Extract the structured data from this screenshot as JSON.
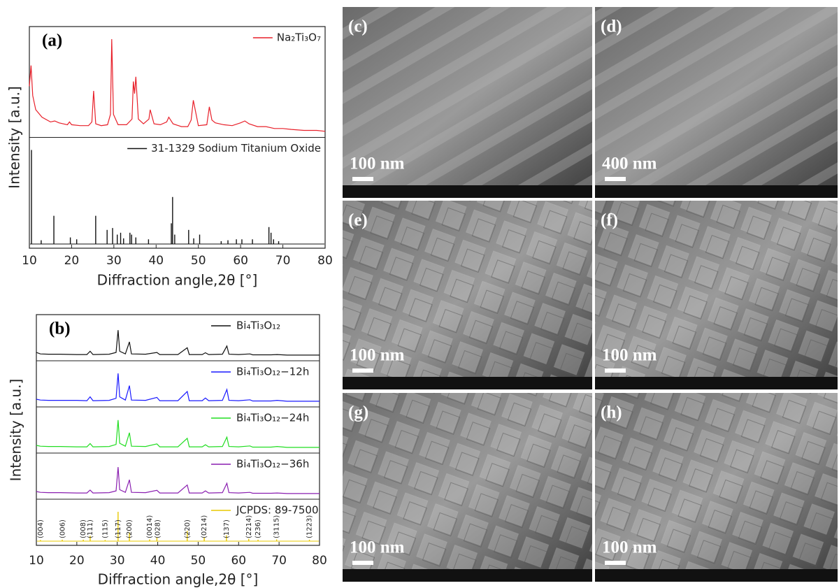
{
  "chart_data": [
    {
      "type": "line",
      "panel_label": "(a)",
      "xlabel": "Diffraction angle,2θ [°]",
      "ylabel": "Intensity [a.u.]",
      "xlim": [
        10,
        80
      ],
      "xticks": [
        10,
        20,
        30,
        40,
        50,
        60,
        70,
        80
      ],
      "ylim": [
        0,
        100
      ],
      "legend": "upper right",
      "series": [
        {
          "name": "Na₂Ti₃O₇",
          "color": "#e8202a",
          "x": [
            10,
            10.4,
            10.8,
            11.5,
            13,
            15,
            16,
            17,
            19,
            19.5,
            20,
            22,
            24,
            24.8,
            25.2,
            25.7,
            27,
            28.5,
            29.2,
            29.5,
            29.9,
            31,
            33,
            34.3,
            34.6,
            34.9,
            35.2,
            35.8,
            37,
            38.3,
            38.6,
            39.5,
            41,
            42.5,
            43,
            44,
            46,
            47.5,
            48.3,
            48.8,
            50,
            52,
            52.6,
            53.2,
            54,
            56,
            58,
            60,
            61,
            62,
            64,
            66,
            68,
            70,
            72,
            75,
            78,
            80
          ],
          "values": [
            50,
            72,
            40,
            25,
            17,
            12,
            13,
            11,
            9,
            12,
            9,
            8,
            8,
            12,
            45,
            10,
            8,
            9,
            20,
            100,
            20,
            9,
            9,
            15,
            55,
            42,
            60,
            15,
            10,
            15,
            25,
            10,
            9,
            12,
            17,
            10,
            7,
            7,
            14,
            35,
            8,
            9,
            28,
            14,
            11,
            9,
            8,
            11,
            13,
            10,
            7,
            7,
            5,
            5,
            4,
            3,
            3,
            2
          ]
        },
        {
          "name": "31-1329 Sodium Titanium Oxide",
          "color": "#111111",
          "style": "stick",
          "x": [
            10.5,
            12.8,
            15.8,
            19.7,
            21.2,
            25.7,
            28.4,
            29.7,
            30.8,
            31.6,
            32.3,
            33.8,
            34.2,
            35.2,
            38.2,
            43.6,
            43.9,
            44.4,
            47.7,
            48.9,
            50.3,
            55.4,
            57,
            59,
            60.3,
            62.8,
            66.7,
            67.2,
            67.8,
            69
          ],
          "values": [
            100,
            4,
            30,
            7,
            5,
            30,
            15,
            17,
            10,
            12,
            6,
            12,
            10,
            7,
            5,
            22,
            50,
            10,
            15,
            6,
            10,
            3,
            4,
            5,
            5,
            5,
            18,
            12,
            5,
            3
          ]
        }
      ]
    },
    {
      "type": "line",
      "panel_label": "(b)",
      "xlabel": "Diffraction angle,2θ [°]",
      "ylabel": "Intensity [a.u.]",
      "xlim": [
        10,
        80
      ],
      "xticks": [
        10,
        20,
        30,
        40,
        50,
        60,
        70,
        80
      ],
      "ylim": [
        0,
        100
      ],
      "legend": "upper center",
      "series": [
        {
          "name": "Bi₄Ti₃O₁₂",
          "color": "#111111",
          "x": [
            10,
            11,
            13,
            16,
            20,
            22.5,
            23.3,
            24,
            28,
            29.7,
            30.2,
            30.6,
            32,
            33,
            33.5,
            37,
            39.8,
            40.5,
            45,
            47.3,
            47.8,
            51,
            51.8,
            52.6,
            56,
            57.1,
            57.6,
            60,
            62.8,
            63.5,
            68,
            69.5,
            72,
            77,
            80
          ],
          "values": [
            14,
            9,
            8,
            8,
            7,
            7,
            18,
            7,
            8,
            14,
            90,
            18,
            9,
            50,
            9,
            8,
            14,
            7,
            7,
            30,
            7,
            7,
            13,
            7,
            8,
            36,
            8,
            7,
            9,
            6,
            6,
            7,
            5,
            5,
            5
          ]
        },
        {
          "name": "Bi₄Ti₃O₁₂−12h",
          "color": "#1a1aff",
          "x": [
            10,
            11,
            13,
            16,
            20,
            22.5,
            23.3,
            24,
            28,
            29.7,
            30.2,
            30.6,
            32,
            33,
            33.5,
            37,
            39.8,
            40.5,
            45,
            47.3,
            47.8,
            51,
            51.8,
            52.6,
            56,
            57.1,
            57.6,
            60,
            62.8,
            63.5,
            68,
            69.5,
            72,
            77,
            80
          ],
          "values": [
            12,
            9,
            8,
            8,
            8,
            7,
            20,
            7,
            8,
            15,
            100,
            20,
            9,
            58,
            9,
            8,
            18,
            7,
            7,
            38,
            7,
            7,
            16,
            7,
            8,
            45,
            8,
            7,
            10,
            6,
            6,
            8,
            5,
            5,
            5
          ]
        },
        {
          "name": "Bi₄Ti₃O₁₂−24h",
          "color": "#22dd22",
          "x": [
            10,
            11,
            13,
            16,
            20,
            22.5,
            23.3,
            24,
            28,
            29.7,
            30.2,
            30.6,
            32,
            33,
            33.5,
            37,
            39.8,
            40.5,
            45,
            47.3,
            47.8,
            51,
            51.8,
            52.6,
            56,
            57.1,
            57.6,
            60,
            62.8,
            63.5,
            68,
            69.5,
            72,
            77,
            80
          ],
          "values": [
            12,
            9,
            8,
            8,
            7,
            7,
            18,
            7,
            8,
            15,
            98,
            19,
            9,
            55,
            9,
            8,
            17,
            7,
            7,
            36,
            7,
            7,
            14,
            7,
            8,
            40,
            8,
            7,
            10,
            6,
            6,
            8,
            5,
            5,
            5
          ]
        },
        {
          "name": "Bi₄Ti₃O₁₂−36h",
          "color": "#8a1fb0",
          "x": [
            10,
            11,
            13,
            16,
            20,
            22.5,
            23.3,
            24,
            28,
            29.7,
            30.2,
            30.6,
            32,
            33,
            33.5,
            37,
            39.8,
            40.5,
            45,
            47.3,
            47.8,
            51,
            51.8,
            52.6,
            56,
            57.1,
            57.6,
            60,
            62.8,
            63.5,
            68,
            69.5,
            72,
            77,
            80
          ],
          "values": [
            12,
            9,
            8,
            8,
            7,
            7,
            17,
            7,
            8,
            14,
            95,
            18,
            9,
            52,
            9,
            8,
            16,
            7,
            7,
            34,
            7,
            7,
            14,
            7,
            8,
            40,
            8,
            7,
            9,
            6,
            6,
            7,
            5,
            5,
            5
          ]
        },
        {
          "name": "JCPDS: 89-7500",
          "color": "#e8c800",
          "style": "stick",
          "x": [
            11,
            16.4,
            21.6,
            23.3,
            27,
            30.2,
            33,
            38,
            39.8,
            47.3,
            51.5,
            57,
            62.5,
            64.8,
            69.4,
            77.5
          ],
          "values": [
            4,
            5,
            5,
            18,
            4,
            100,
            30,
            6,
            12,
            35,
            12,
            20,
            8,
            5,
            6,
            5
          ]
        }
      ],
      "annotations": [
        {
          "text": "(004)",
          "x": 11
        },
        {
          "text": "(006)",
          "x": 16.5
        },
        {
          "text": "(008)",
          "x": 21.6
        },
        {
          "text": "(111)",
          "x": 23.3
        },
        {
          "text": "(115)",
          "x": 27
        },
        {
          "text": "(117)",
          "x": 30.2
        },
        {
          "text": "(200)",
          "x": 33
        },
        {
          "text": "(0014)",
          "x": 38
        },
        {
          "text": "(028)",
          "x": 40
        },
        {
          "text": "(220)",
          "x": 47.3
        },
        {
          "text": "(0214)",
          "x": 51.5
        },
        {
          "text": "(137)",
          "x": 57
        },
        {
          "text": "(2214)",
          "x": 62.5
        },
        {
          "text": "(236)",
          "x": 64.8
        },
        {
          "text": "(3115)",
          "x": 69.4
        },
        {
          "text": "(1223)",
          "x": 77.5
        }
      ]
    }
  ],
  "images": [
    {
      "label": "(c)",
      "scale_bar": "100 nm"
    },
    {
      "label": "(d)",
      "scale_bar": "400 nm"
    },
    {
      "label": "(e)",
      "scale_bar": "100 nm"
    },
    {
      "label": "(f)",
      "scale_bar": "100 nm"
    },
    {
      "label": "(g)",
      "scale_bar": "100 nm"
    },
    {
      "label": "(h)",
      "scale_bar": "100 nm"
    }
  ]
}
